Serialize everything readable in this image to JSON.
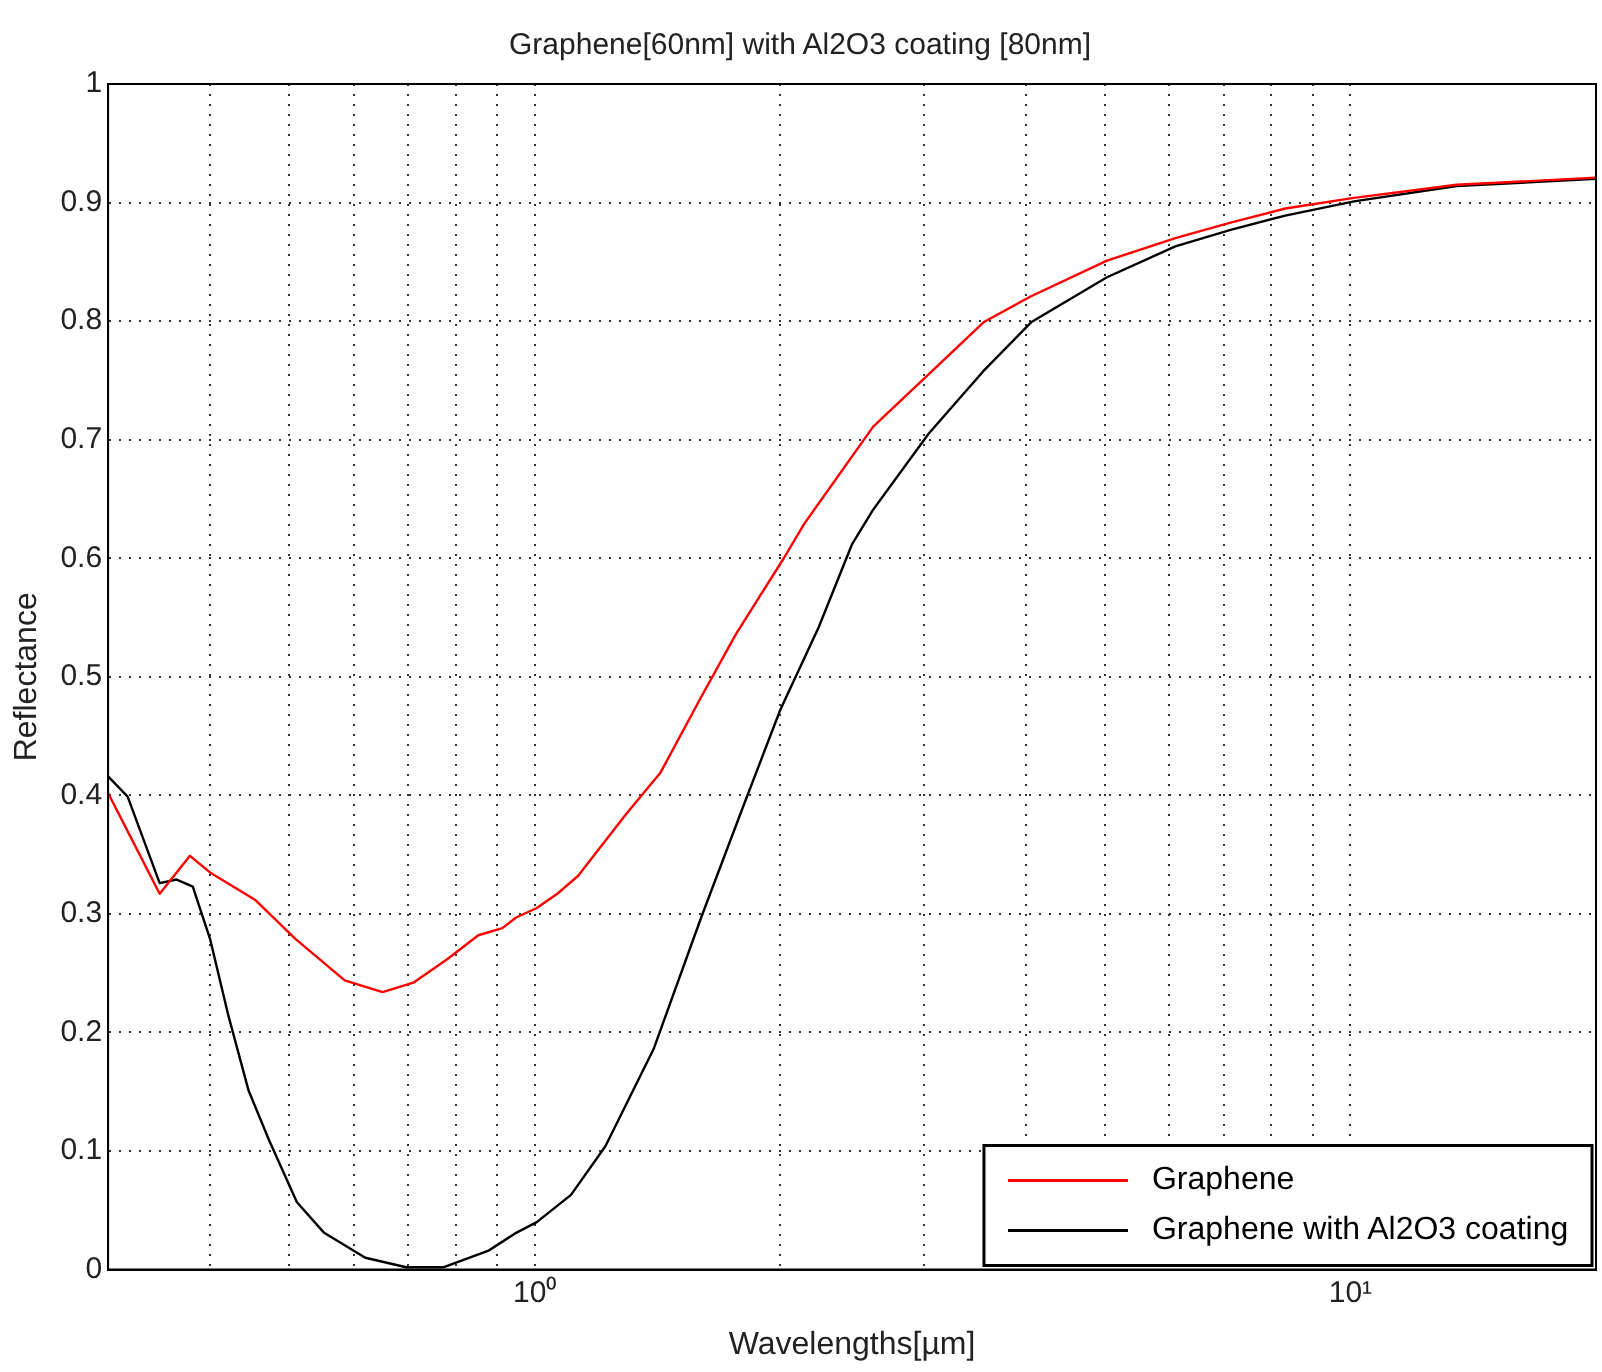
{
  "chart_data": {
    "type": "line",
    "title": "Graphene[60nm] with Al2O3 coating [80nm]",
    "xlabel": "Wavelengths[µm]",
    "ylabel": "Reflectance",
    "log": "x",
    "xlim": [
      0.3,
      20
    ],
    "ylim": [
      0,
      1
    ],
    "xticks": [
      {
        "value": 0.3,
        "label": null
      },
      {
        "value": 0.4,
        "label": null
      },
      {
        "value": 0.5,
        "label": null
      },
      {
        "value": 0.6,
        "label": null
      },
      {
        "value": 0.7,
        "label": null
      },
      {
        "value": 0.8,
        "label": null
      },
      {
        "value": 0.9,
        "label": null
      },
      {
        "value": 1,
        "label": "10⁰"
      },
      {
        "value": 2,
        "label": null
      },
      {
        "value": 3,
        "label": null
      },
      {
        "value": 4,
        "label": null
      },
      {
        "value": 5,
        "label": null
      },
      {
        "value": 6,
        "label": null
      },
      {
        "value": 7,
        "label": null
      },
      {
        "value": 8,
        "label": null
      },
      {
        "value": 9,
        "label": null
      },
      {
        "value": 10,
        "label": "10¹"
      },
      {
        "value": 20,
        "label": null
      }
    ],
    "yticks": [
      0,
      0.1,
      0.2,
      0.3,
      0.4,
      0.5,
      0.6,
      0.7,
      0.8,
      0.9,
      1
    ],
    "grid": true,
    "legend": "bottom right",
    "series": [
      {
        "name": "Graphene",
        "color": "#ff0000",
        "x": [
          0.3,
          0.347,
          0.378,
          0.4,
          0.454,
          0.509,
          0.585,
          0.651,
          0.71,
          0.782,
          0.853,
          0.913,
          0.949,
          1.006,
          1.066,
          1.13,
          1.294,
          1.426,
          1.6,
          1.765,
          2.02,
          2.14,
          2.6,
          3.04,
          3.55,
          4.06,
          5.03,
          6.1,
          7.13,
          8.32,
          10.1,
          13.5,
          20
        ],
        "values": [
          0.402,
          0.317,
          0.349,
          0.335,
          0.312,
          0.279,
          0.244,
          0.234,
          0.242,
          0.262,
          0.282,
          0.288,
          0.297,
          0.305,
          0.317,
          0.332,
          0.384,
          0.419,
          0.483,
          0.536,
          0.6,
          0.629,
          0.711,
          0.755,
          0.799,
          0.821,
          0.851,
          0.87,
          0.883,
          0.895,
          0.904,
          0.915,
          0.921
        ]
      },
      {
        "name": "Graphene with Al2O3 coating",
        "color": "#000000",
        "x": [
          0.3,
          0.317,
          0.347,
          0.364,
          0.381,
          0.4,
          0.421,
          0.446,
          0.472,
          0.511,
          0.552,
          0.62,
          0.696,
          0.774,
          0.878,
          0.949,
          1.006,
          1.108,
          1.221,
          1.399,
          1.6,
          1.8,
          2,
          2.23,
          2.45,
          2.6,
          3.04,
          3.55,
          4.06,
          5.03,
          6.1,
          7.13,
          8.32,
          10.1,
          13.5,
          20
        ],
        "values": [
          0.416,
          0.399,
          0.326,
          0.329,
          0.323,
          0.279,
          0.215,
          0.151,
          0.11,
          0.057,
          0.031,
          0.01,
          0.002,
          0.002,
          0.016,
          0.031,
          0.04,
          0.063,
          0.104,
          0.186,
          0.297,
          0.39,
          0.472,
          0.542,
          0.612,
          0.641,
          0.705,
          0.758,
          0.799,
          0.837,
          0.863,
          0.877,
          0.889,
          0.901,
          0.914,
          0.92
        ]
      }
    ]
  }
}
